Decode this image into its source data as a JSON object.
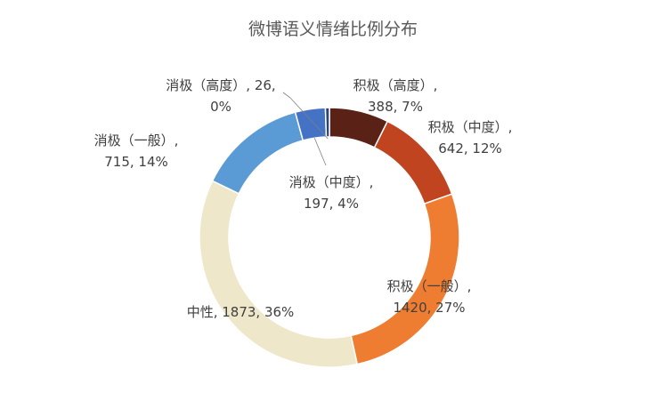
{
  "chart_data": {
    "type": "pie",
    "variant": "doughnut",
    "title": "微博语义情绪比例分布",
    "start_angle_deg": 0,
    "direction": "clockwise",
    "slices": [
      {
        "category": "积极（高度）",
        "value": 388,
        "percent": "7%",
        "label_line1": "积极（高度）,",
        "label_line2": "388, 7%",
        "color": "#5a2216"
      },
      {
        "category": "积极（中度）",
        "value": 642,
        "percent": "12%",
        "label_line1": "积极（中度）,",
        "label_line2": "642, 12%",
        "color": "#c0441f"
      },
      {
        "category": "积极（一般）",
        "value": 1420,
        "percent": "27%",
        "label_line1": "积极（一般）,",
        "label_line2": "1420, 27%",
        "color": "#ee7d32"
      },
      {
        "category": "中性",
        "value": 1873,
        "percent": "36%",
        "label_line1": "中性, 1873, 36%",
        "label_line2": "",
        "color": "#efe7ca"
      },
      {
        "category": "消极（一般）",
        "value": 715,
        "percent": "14%",
        "label_line1": "消极（一般）,",
        "label_line2": "715, 14%",
        "color": "#5b9bd5"
      },
      {
        "category": "消极（中度）",
        "value": 197,
        "percent": "4%",
        "label_line1": "消极（中度）,",
        "label_line2": "197, 4%",
        "color": "#4472c4"
      },
      {
        "category": "消极（高度）",
        "value": 26,
        "percent": "0%",
        "label_line1": "消极（高度）, 26,",
        "label_line2": "0%",
        "color": "#264478"
      }
    ],
    "legend": "none"
  }
}
